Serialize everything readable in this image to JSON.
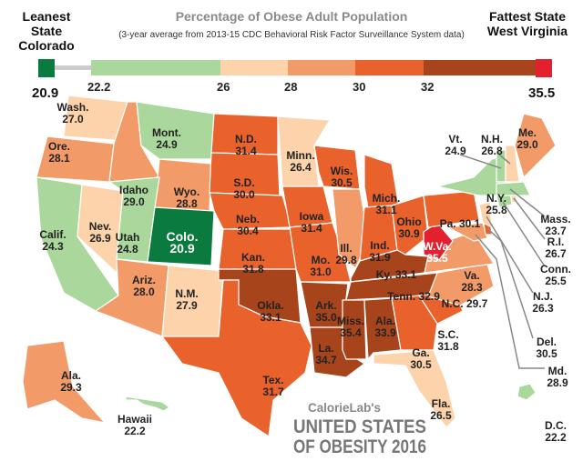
{
  "header": {
    "leanest_label": "Leanest State",
    "leanest_state": "Colorado",
    "fattest_label": "Fattest State",
    "fattest_state": "West Virginia",
    "title": "Percentage of Obese Adult Population",
    "subtitle": "(3-year average from 2013-15 CDC Behavioral Risk Factor Surveillance System data)"
  },
  "legend": {
    "min": "20.9",
    "max": "35.5",
    "ticks": [
      "22.2",
      "26",
      "28",
      "30",
      "32"
    ],
    "colors": {
      "min": "#0b7a3e",
      "bin1": "#a9d79c",
      "bin2": "#fcd3aa",
      "bin3": "#f39a69",
      "bin4": "#e9622b",
      "bin5": "#a8441b",
      "max": "#e3202e",
      "gap": "#cccccc"
    }
  },
  "states": [
    {
      "abbr": "Wash.",
      "value": 27.0
    },
    {
      "abbr": "Ore.",
      "value": 28.1
    },
    {
      "abbr": "Calif.",
      "value": 24.3
    },
    {
      "abbr": "Nev.",
      "value": 26.9
    },
    {
      "abbr": "Idaho",
      "value": 29.0
    },
    {
      "abbr": "Mont.",
      "value": 24.9
    },
    {
      "abbr": "Wyo.",
      "value": 28.8
    },
    {
      "abbr": "Utah",
      "value": 24.8
    },
    {
      "abbr": "Colo.",
      "value": 20.9
    },
    {
      "abbr": "Ariz.",
      "value": 28.0
    },
    {
      "abbr": "N.M.",
      "value": 27.9
    },
    {
      "abbr": "N.D.",
      "value": 31.4
    },
    {
      "abbr": "S.D.",
      "value": 30.0
    },
    {
      "abbr": "Neb.",
      "value": 30.4
    },
    {
      "abbr": "Kan.",
      "value": 31.8
    },
    {
      "abbr": "Okla.",
      "value": 33.1
    },
    {
      "abbr": "Tex.",
      "value": 31.7
    },
    {
      "abbr": "Minn.",
      "value": 26.4
    },
    {
      "abbr": "Iowa",
      "value": 31.4
    },
    {
      "abbr": "Mo.",
      "value": 31.0
    },
    {
      "abbr": "Ark.",
      "value": 35.0
    },
    {
      "abbr": "La.",
      "value": 34.7
    },
    {
      "abbr": "Wis.",
      "value": 30.5
    },
    {
      "abbr": "Ill.",
      "value": 29.8
    },
    {
      "abbr": "Mich.",
      "value": 31.1
    },
    {
      "abbr": "Ind.",
      "value": 31.9
    },
    {
      "abbr": "Ohio",
      "value": 30.9
    },
    {
      "abbr": "Ky.",
      "value": 33.1
    },
    {
      "abbr": "Tenn.",
      "value": 32.9
    },
    {
      "abbr": "Miss.",
      "value": 35.4
    },
    {
      "abbr": "Ala.",
      "value": 33.9
    },
    {
      "abbr": "Ga.",
      "value": 30.5
    },
    {
      "abbr": "S.C.",
      "value": 31.8
    },
    {
      "abbr": "N.C.",
      "value": 29.7
    },
    {
      "abbr": "Va.",
      "value": 28.3
    },
    {
      "abbr": "W.Va.",
      "value": 35.5
    },
    {
      "abbr": "Pa.",
      "value": 30.1
    },
    {
      "abbr": "N.Y.",
      "value": 25.8
    },
    {
      "abbr": "Md.",
      "value": 28.9
    },
    {
      "abbr": "Del.",
      "value": 30.5
    },
    {
      "abbr": "N.J.",
      "value": 26.3
    },
    {
      "abbr": "Conn.",
      "value": 25.5
    },
    {
      "abbr": "R.I.",
      "value": 26.7
    },
    {
      "abbr": "Mass.",
      "value": 23.7
    },
    {
      "abbr": "Vt.",
      "value": 24.9
    },
    {
      "abbr": "N.H.",
      "value": 26.8
    },
    {
      "abbr": "Me.",
      "value": 29.0
    },
    {
      "abbr": "Fla.",
      "value": 26.5
    },
    {
      "abbr": "Ala. (AK)",
      "display": "Ala.",
      "value": 29.3
    },
    {
      "abbr": "Hawaii",
      "value": 22.2
    },
    {
      "abbr": "D.C.",
      "value": 22.2
    }
  ],
  "branding": {
    "brand": "CalorieLab's",
    "line1": "UNITED STATES",
    "line2": "OF OBESITY 2016"
  }
}
